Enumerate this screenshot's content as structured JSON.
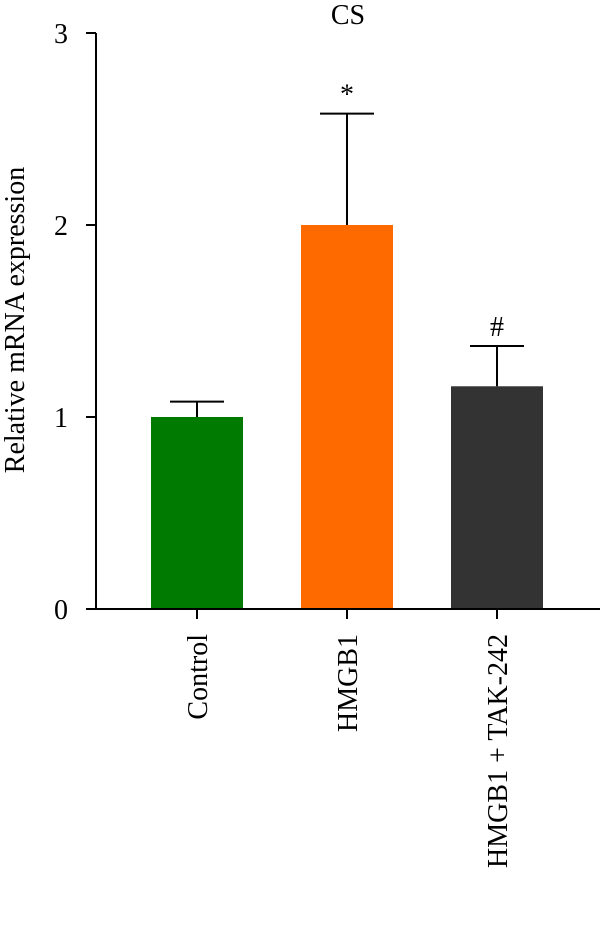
{
  "chart_data": {
    "type": "bar",
    "title": "CS",
    "ylabel": "Relative mRNA expression",
    "xlabel": "",
    "categories": [
      "Control",
      "HMGB1",
      "HMGB1 + TAK-242"
    ],
    "values": [
      1.0,
      2.0,
      1.16
    ],
    "error": [
      0.08,
      0.58,
      0.21
    ],
    "annotations": [
      "",
      "*",
      "#"
    ],
    "colors": [
      "#007a00",
      "#ff6a00",
      "#333333"
    ],
    "ylim": [
      0,
      3
    ],
    "yticks": [
      "0",
      "1",
      "2",
      "3"
    ],
    "grid": false,
    "legend": "none"
  }
}
